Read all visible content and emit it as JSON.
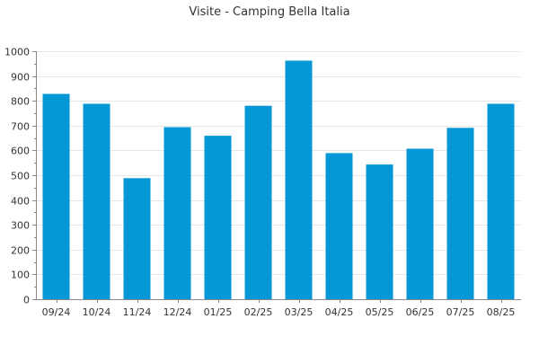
{
  "chart_data": {
    "type": "bar",
    "title": "Visite - Camping Bella Italia",
    "xlabel": "",
    "ylabel": "",
    "categories": [
      "09/24",
      "10/24",
      "11/24",
      "12/24",
      "01/25",
      "02/25",
      "03/25",
      "04/25",
      "05/25",
      "06/25",
      "07/25",
      "08/25"
    ],
    "series": [
      {
        "values": [
          828,
          788,
          488,
          694,
          659,
          780,
          962,
          589,
          543,
          607,
          691,
          788
        ]
      }
    ],
    "ylim": [
      0,
      1000
    ],
    "yticks": [
      0,
      100,
      200,
      300,
      400,
      500,
      600,
      700,
      800,
      900,
      1000
    ],
    "grid": true,
    "legend": "none",
    "colors": {
      "bar": "#0698d6",
      "grid": "#e6e6e6",
      "axis": "#888888",
      "text": "#333333"
    }
  }
}
